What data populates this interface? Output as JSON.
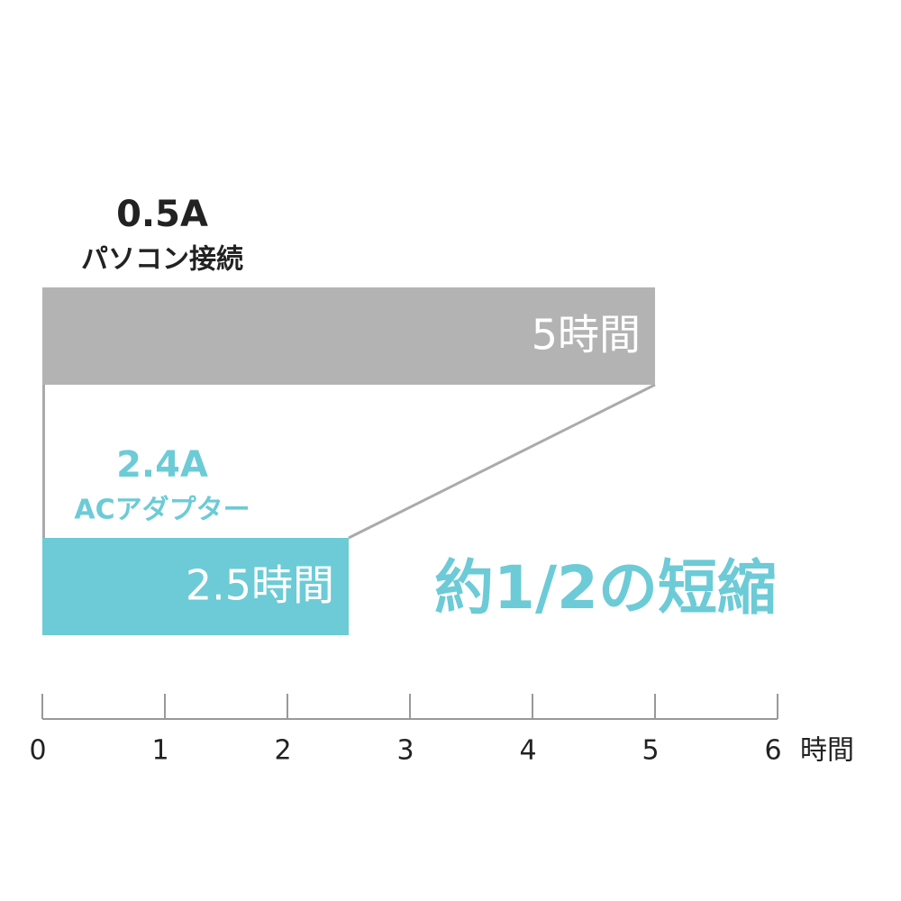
{
  "chart_data": {
    "type": "bar",
    "orientation": "horizontal",
    "categories": [
      "0.5A",
      "2.4A"
    ],
    "category_subtitles": [
      "パソコン接続",
      "ACアダプター"
    ],
    "values": [
      5,
      2.5
    ],
    "value_labels": [
      "5時間",
      "2.5時間"
    ],
    "colors": [
      "#b3b3b3",
      "#6ccbd6"
    ],
    "label_colors": [
      "#222222",
      "#6ccbd6"
    ],
    "xlim": [
      0,
      6
    ],
    "xticks": [
      0,
      1,
      2,
      3,
      4,
      5,
      6
    ],
    "xlabel": "時間",
    "annotation": "約1/2の短縮"
  }
}
